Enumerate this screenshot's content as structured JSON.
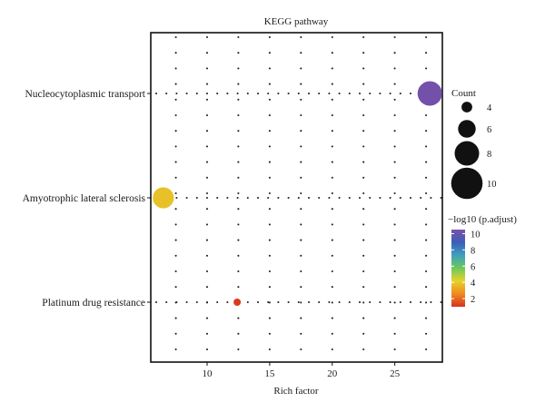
{
  "chart_data": {
    "type": "scatter",
    "title": "KEGG pathway",
    "xlabel": "Rich factor",
    "ylabel": "",
    "xlim": [
      5.5,
      28.8
    ],
    "xticks": [
      10,
      15,
      20,
      25
    ],
    "grid": "dotted",
    "categories": [
      "Nucleocytoplasmic transport",
      "Amyotrophic lateral sclerosis",
      "Platinum drug resistance"
    ],
    "points": [
      {
        "category": "Nucleocytoplasmic transport",
        "rich_factor": 27.8,
        "count": 8,
        "neg_log10_padjust": 10.3
      },
      {
        "category": "Amyotrophic lateral sclerosis",
        "rich_factor": 6.5,
        "count": 7,
        "neg_log10_padjust": 3.8
      },
      {
        "category": "Platinum drug resistance",
        "rich_factor": 12.4,
        "count": 3,
        "neg_log10_padjust": 1.2
      }
    ],
    "size_legend": {
      "title": "Count",
      "values": [
        4,
        6,
        8,
        10
      ]
    },
    "color_legend": {
      "title": "−log10 (p.adjust)",
      "ticks": [
        10,
        8,
        6,
        4,
        2
      ],
      "range": [
        1,
        10.5
      ],
      "stops": [
        "#d7301f",
        "#ef8a1f",
        "#e6d22c",
        "#6cc95a",
        "#3fa0bd",
        "#3b5fb8",
        "#7b4fa8"
      ]
    },
    "legend_position": "right"
  }
}
